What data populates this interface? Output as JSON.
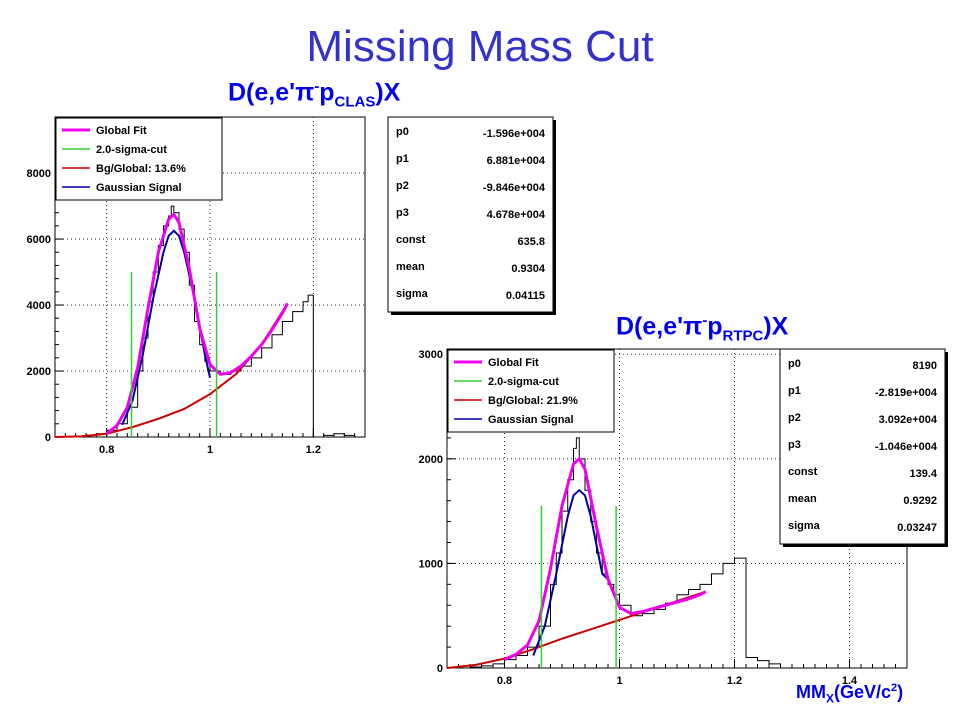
{
  "slide": {
    "title": "Missing Mass Cut"
  },
  "panels": [
    {
      "title_main": "D(e,e'π",
      "title_sup": "-",
      "title_p": "p",
      "title_sub": "CLAS",
      "title_end": ")X",
      "stats": [
        {
          "name": "p0",
          "value": "-1.596e+004"
        },
        {
          "name": "p1",
          "value": "6.881e+004"
        },
        {
          "name": "p2",
          "value": "-9.846e+004"
        },
        {
          "name": "p3",
          "value": "4.678e+004"
        },
        {
          "name": "const",
          "value": "635.8"
        },
        {
          "name": "mean",
          "value": "0.9304"
        },
        {
          "name": "sigma",
          "value": "0.04115"
        }
      ]
    },
    {
      "title_main": "D(e,e'π",
      "title_sup": "-",
      "title_p": "p",
      "title_sub": "RTPC",
      "title_end": ")X",
      "xlabel_main": "MM",
      "xlabel_sub": "X",
      "xlabel_mid": "(GeV/c",
      "xlabel_sup": "2",
      "xlabel_end": ")",
      "stats": [
        {
          "name": "p0",
          "value": "8190"
        },
        {
          "name": "p1",
          "value": "-2.819e+004"
        },
        {
          "name": "p2",
          "value": "3.092e+004"
        },
        {
          "name": "p3",
          "value": "-1.046e+004"
        },
        {
          "name": "const",
          "value": "139.4"
        },
        {
          "name": "mean",
          "value": "0.9292"
        },
        {
          "name": "sigma",
          "value": "0.03247"
        }
      ]
    }
  ],
  "colors": {
    "title": "#3333cc",
    "hist_title": "#0000ee",
    "global_fit": "#ee00ee",
    "cut": "#33cc33",
    "background": "#cc0000",
    "signal": "#000099",
    "histogram": "#000000"
  },
  "chart_data": [
    {
      "type": "line",
      "title": "D(e,e'π-pCLAS)X",
      "xlim": [
        0.7,
        1.3
      ],
      "ylim": [
        0,
        9700
      ],
      "xticks": [
        0.8,
        1,
        1.2
      ],
      "xtick_labels": [
        "0.8",
        "1",
        "1.2"
      ],
      "yticks": [
        0,
        2000,
        4000,
        6000,
        8000
      ],
      "ytick_labels": [
        "0",
        "2000",
        "4000",
        "6000",
        "8000"
      ],
      "grid": true,
      "legend_position": "top-left",
      "legend": [
        {
          "label": "Global Fit",
          "color": "#ee00ee"
        },
        {
          "label": "2.0-sigma-cut",
          "color": "#33cc33"
        },
        {
          "label": "Bg/Global: 13.6%",
          "color": "#cc0000"
        },
        {
          "label": "Gaussian Signal",
          "color": "#000099"
        }
      ],
      "histogram": {
        "x": [
          0.7,
          0.72,
          0.74,
          0.76,
          0.78,
          0.8,
          0.82,
          0.84,
          0.86,
          0.87,
          0.88,
          0.89,
          0.9,
          0.91,
          0.92,
          0.925,
          0.93,
          0.94,
          0.95,
          0.96,
          0.97,
          0.98,
          0.99,
          1.0,
          1.02,
          1.04,
          1.06,
          1.08,
          1.1,
          1.12,
          1.14,
          1.16,
          1.18,
          1.19,
          1.2,
          1.22,
          1.24,
          1.26,
          1.28,
          1.3
        ],
        "y": [
          0,
          0,
          20,
          60,
          100,
          200,
          400,
          900,
          2000,
          3000,
          4100,
          5000,
          5800,
          6400,
          6700,
          7000,
          6800,
          6300,
          5600,
          4600,
          3500,
          2800,
          2300,
          2000,
          1900,
          2000,
          2150,
          2400,
          2700,
          3100,
          3500,
          3800,
          4100,
          4300,
          0,
          50,
          100,
          50,
          0,
          0
        ]
      },
      "cut_lines": {
        "x": [
          0.8481,
          1.0127
        ],
        "y_top": 5000
      },
      "global_fit": {
        "x": [
          0.8,
          0.82,
          0.84,
          0.86,
          0.88,
          0.9,
          0.92,
          0.93,
          0.94,
          0.96,
          0.98,
          1.0,
          1.02,
          1.04,
          1.06,
          1.08,
          1.1,
          1.12,
          1.14,
          1.15
        ],
        "y": [
          100,
          350,
          900,
          2100,
          3900,
          5600,
          6600,
          6750,
          6500,
          5100,
          3300,
          2200,
          1900,
          1950,
          2150,
          2450,
          2800,
          3250,
          3750,
          4050
        ]
      },
      "gaussian_signal": {
        "x": [
          0.83,
          0.85,
          0.87,
          0.89,
          0.91,
          0.92,
          0.93,
          0.94,
          0.95,
          0.97,
          0.99,
          1.0
        ],
        "y": [
          370,
          1100,
          2500,
          4200,
          5600,
          6100,
          6250,
          6100,
          5600,
          4200,
          2500,
          1800
        ]
      },
      "background_fit": {
        "x": [
          0.7,
          0.75,
          0.8,
          0.85,
          0.9,
          0.95,
          1.0,
          1.05,
          1.1,
          1.15
        ],
        "y": [
          0,
          20,
          100,
          300,
          550,
          850,
          1300,
          1900,
          2800,
          4050
        ]
      }
    },
    {
      "type": "line",
      "title": "D(e,e'π-pRTPC)X",
      "xlabel": "MMX(GeV/c2)",
      "xlim": [
        0.7,
        1.5
      ],
      "ylim": [
        0,
        3050
      ],
      "xticks": [
        0.8,
        1,
        1.2,
        1.4
      ],
      "xtick_labels": [
        "0.8",
        "1",
        "1.2",
        "1.4"
      ],
      "yticks": [
        0,
        1000,
        2000,
        3000
      ],
      "ytick_labels": [
        "0",
        "1000",
        "2000",
        "3000"
      ],
      "grid": true,
      "legend_position": "top-left",
      "legend": [
        {
          "label": "Global Fit",
          "color": "#ee00ee"
        },
        {
          "label": "2.0-sigma-cut",
          "color": "#33cc33"
        },
        {
          "label": "Bg/Global: 21.9%",
          "color": "#cc0000"
        },
        {
          "label": "Gaussian Signal",
          "color": "#000099"
        }
      ],
      "histogram": {
        "x": [
          0.7,
          0.72,
          0.74,
          0.76,
          0.78,
          0.8,
          0.82,
          0.84,
          0.86,
          0.88,
          0.89,
          0.9,
          0.91,
          0.92,
          0.925,
          0.93,
          0.94,
          0.95,
          0.96,
          0.97,
          0.98,
          0.99,
          1.0,
          1.02,
          1.04,
          1.06,
          1.08,
          1.1,
          1.12,
          1.14,
          1.16,
          1.18,
          1.2,
          1.21,
          1.22,
          1.24,
          1.26,
          1.28,
          1.3
        ],
        "y": [
          0,
          0,
          10,
          20,
          40,
          80,
          120,
          200,
          400,
          800,
          1100,
          1500,
          1800,
          2100,
          2200,
          2000,
          1700,
          1400,
          1100,
          900,
          800,
          700,
          600,
          500,
          520,
          560,
          620,
          700,
          750,
          800,
          900,
          1000,
          1050,
          1050,
          100,
          70,
          40,
          0,
          0
        ]
      },
      "cut_lines": {
        "x": [
          0.8642,
          0.9941
        ],
        "y_top": 1550
      },
      "global_fit": {
        "x": [
          0.8,
          0.82,
          0.84,
          0.86,
          0.88,
          0.9,
          0.92,
          0.93,
          0.94,
          0.96,
          0.98,
          1.0,
          1.02,
          1.04,
          1.06,
          1.08,
          1.1,
          1.12,
          1.14,
          1.15
        ],
        "y": [
          80,
          130,
          220,
          450,
          950,
          1550,
          1950,
          2000,
          1900,
          1350,
          850,
          580,
          520,
          540,
          570,
          600,
          630,
          660,
          700,
          730
        ]
      },
      "gaussian_signal": {
        "x": [
          0.85,
          0.87,
          0.89,
          0.91,
          0.92,
          0.93,
          0.94,
          0.95,
          0.97,
          0.98
        ],
        "y": [
          120,
          400,
          900,
          1450,
          1650,
          1700,
          1650,
          1450,
          900,
          850
        ]
      },
      "background_fit": {
        "x": [
          0.7,
          0.75,
          0.8,
          0.85,
          0.9,
          0.95,
          1.0,
          1.05,
          1.1,
          1.15
        ],
        "y": [
          0,
          30,
          90,
          180,
          280,
          370,
          460,
          550,
          640,
          730
        ]
      }
    }
  ]
}
